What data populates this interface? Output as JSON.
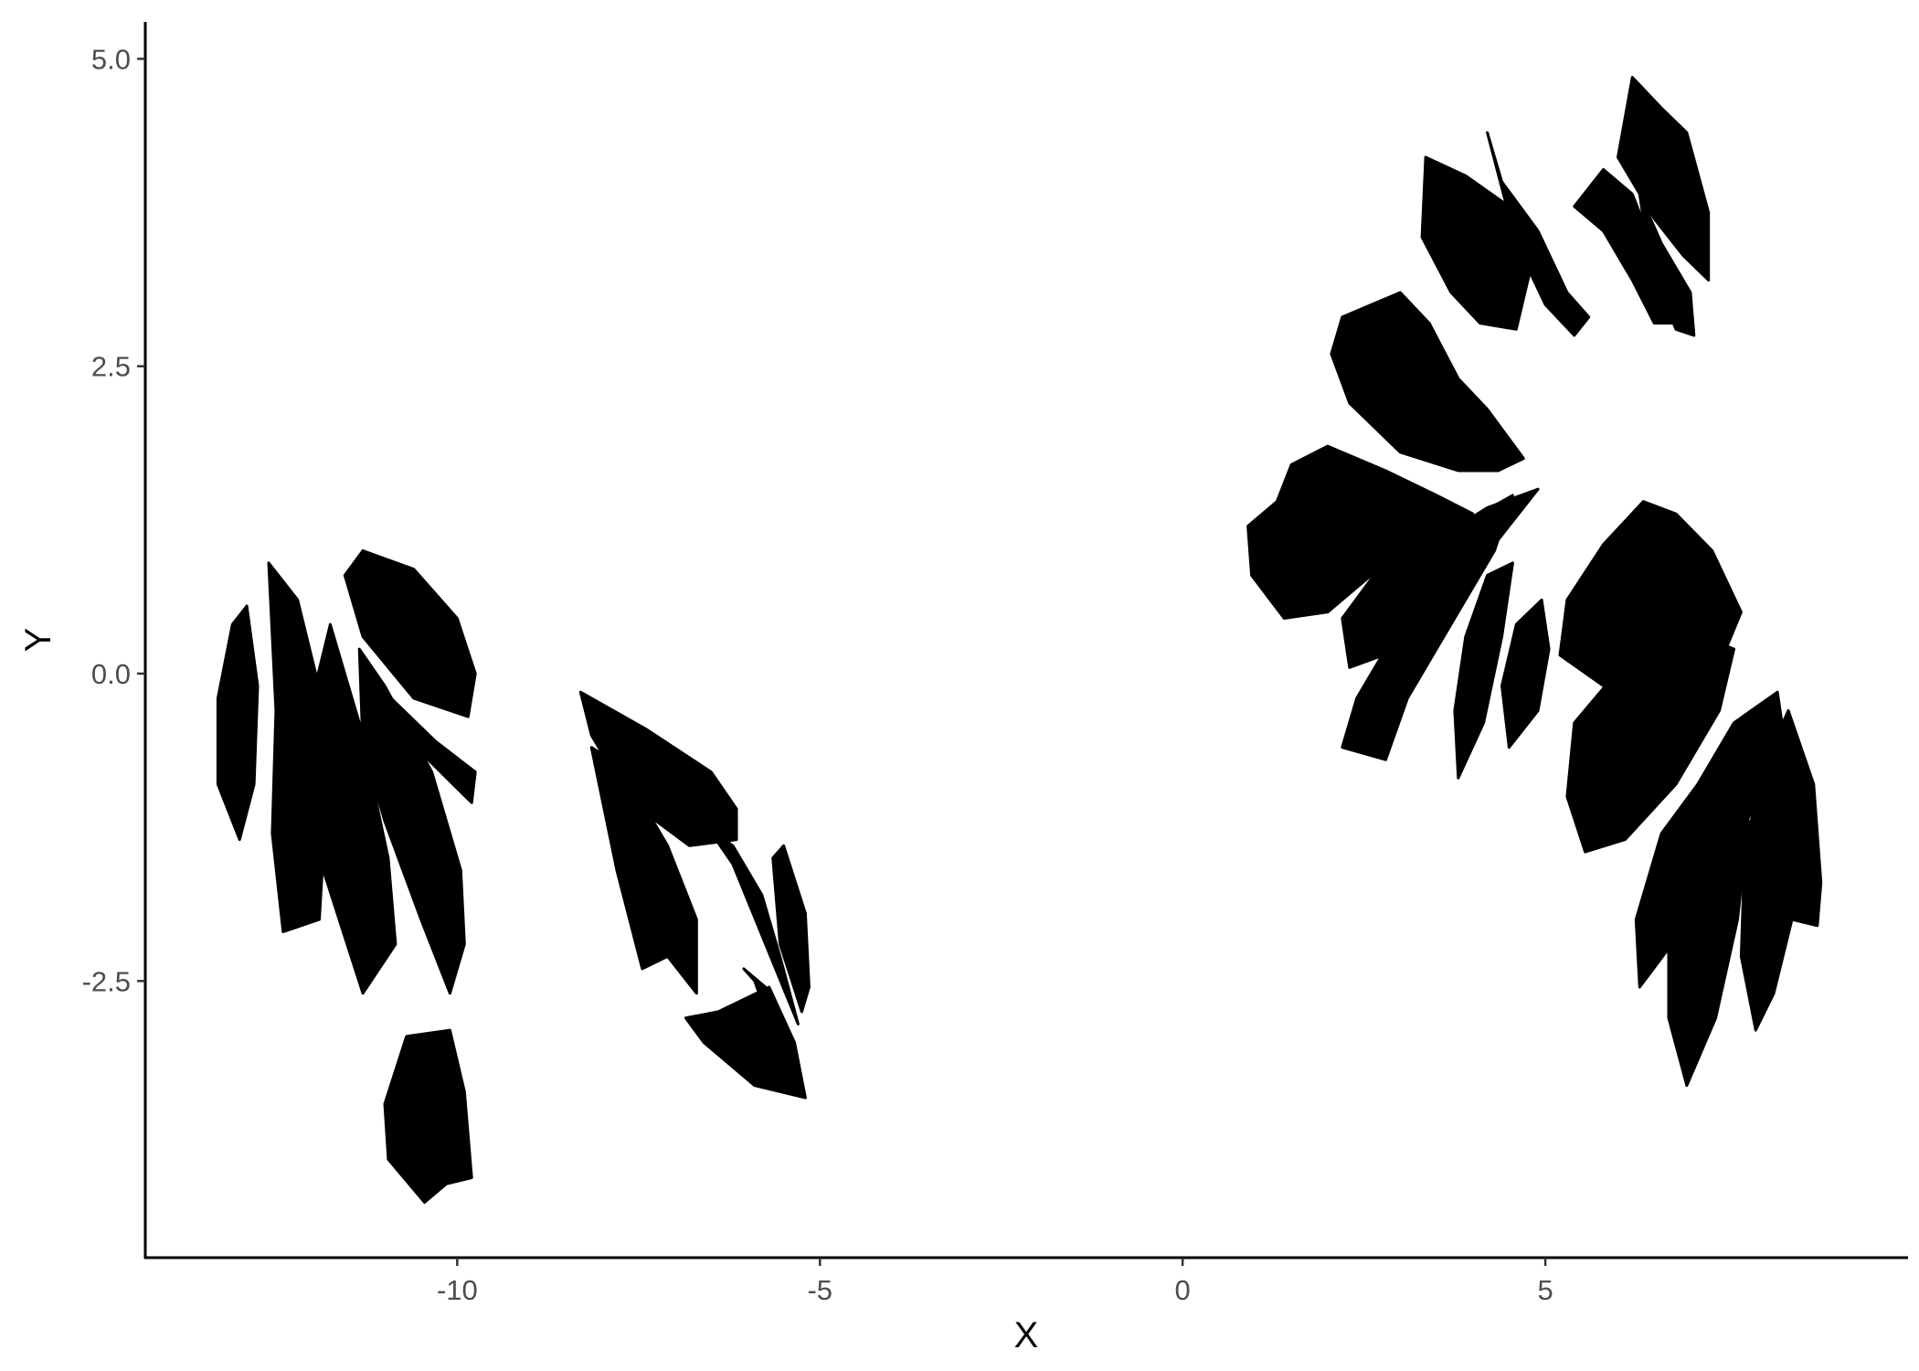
{
  "chart_data": {
    "type": "scatter",
    "title": "",
    "xlabel": "X",
    "ylabel": "Y",
    "xlim": [
      -14.3,
      10
    ],
    "ylim": [
      -4.75,
      5.3
    ],
    "x_ticks": [
      -10,
      -5,
      0,
      5
    ],
    "x_tick_labels": [
      "-10",
      "-5",
      "0",
      "5"
    ],
    "y_ticks": [
      -2.5,
      0,
      2.5,
      5
    ],
    "y_tick_labels": [
      "-2.5",
      "0.0",
      "2.5",
      "5.0"
    ],
    "grid": false,
    "legend": "none",
    "point_color": "#000000",
    "description_free_regions": [
      {
        "name": "leaf-left-narrow",
        "points": [
          [
            -13.0,
            -1.35
          ],
          [
            -13.3,
            -0.9
          ],
          [
            -13.3,
            -0.2
          ],
          [
            -13.1,
            0.4
          ],
          [
            -12.9,
            0.55
          ],
          [
            -12.75,
            -0.1
          ],
          [
            -12.8,
            -0.9
          ]
        ]
      },
      {
        "name": "leaf-left-tall-a",
        "points": [
          [
            -12.4,
            -2.1
          ],
          [
            -12.55,
            -1.3
          ],
          [
            -12.5,
            -0.3
          ],
          [
            -12.6,
            0.9
          ],
          [
            -12.2,
            0.6
          ],
          [
            -11.95,
            0.0
          ],
          [
            -11.8,
            -1.0
          ],
          [
            -11.9,
            -2.0
          ]
        ]
      },
      {
        "name": "leaf-left-tall-b",
        "points": [
          [
            -11.3,
            -2.6
          ],
          [
            -11.9,
            -1.5
          ],
          [
            -12.0,
            -0.2
          ],
          [
            -11.75,
            0.4
          ],
          [
            -11.35,
            -0.4
          ],
          [
            -10.95,
            -1.5
          ],
          [
            -10.85,
            -2.2
          ]
        ]
      },
      {
        "name": "leaf-left-mid",
        "points": [
          [
            -10.1,
            -2.6
          ],
          [
            -10.5,
            -2.0
          ],
          [
            -11.0,
            -1.2
          ],
          [
            -11.3,
            -0.6
          ],
          [
            -11.35,
            0.2
          ],
          [
            -11.0,
            -0.1
          ],
          [
            -10.35,
            -0.8
          ],
          [
            -9.95,
            -1.6
          ],
          [
            -9.9,
            -2.2
          ]
        ]
      },
      {
        "name": "leaf-left-band",
        "points": [
          [
            -9.8,
            -1.05
          ],
          [
            -10.4,
            -0.7
          ],
          [
            -11.0,
            -0.4
          ],
          [
            -11.3,
            0.0
          ],
          [
            -11.0,
            -0.15
          ],
          [
            -10.3,
            -0.55
          ],
          [
            -9.75,
            -0.8
          ]
        ]
      },
      {
        "name": "leaf-left-oval",
        "points": [
          [
            -9.85,
            -0.35
          ],
          [
            -10.6,
            -0.2
          ],
          [
            -11.3,
            0.3
          ],
          [
            -11.55,
            0.8
          ],
          [
            -11.3,
            1.0
          ],
          [
            -10.6,
            0.85
          ],
          [
            -10.0,
            0.45
          ],
          [
            -9.75,
            0.0
          ]
        ]
      },
      {
        "name": "leaf-bottom-small",
        "points": [
          [
            -10.45,
            -4.3
          ],
          [
            -10.95,
            -3.95
          ],
          [
            -11.0,
            -3.5
          ],
          [
            -10.7,
            -2.95
          ],
          [
            -10.1,
            -2.9
          ],
          [
            -9.9,
            -3.4
          ],
          [
            -9.8,
            -4.1
          ],
          [
            -10.15,
            -4.15
          ]
        ]
      },
      {
        "name": "leaf-mid-upper",
        "points": [
          [
            -8.3,
            -0.15
          ],
          [
            -7.4,
            -0.45
          ],
          [
            -6.5,
            -0.8
          ],
          [
            -6.15,
            -1.1
          ],
          [
            -6.15,
            -1.35
          ],
          [
            -6.8,
            -1.4
          ],
          [
            -7.6,
            -1.05
          ],
          [
            -8.15,
            -0.5
          ]
        ]
      },
      {
        "name": "leaf-mid-tall",
        "points": [
          [
            -7.45,
            -2.4
          ],
          [
            -7.8,
            -1.6
          ],
          [
            -8.15,
            -0.6
          ],
          [
            -7.75,
            -0.75
          ],
          [
            -7.1,
            -1.4
          ],
          [
            -6.7,
            -2.0
          ],
          [
            -6.7,
            -2.6
          ],
          [
            -7.1,
            -2.3
          ]
        ]
      },
      {
        "name": "leaf-mid-slim",
        "points": [
          [
            -5.3,
            -2.85
          ],
          [
            -5.75,
            -2.2
          ],
          [
            -6.2,
            -1.55
          ],
          [
            -6.55,
            -1.25
          ],
          [
            -6.2,
            -1.4
          ],
          [
            -5.8,
            -1.8
          ],
          [
            -5.55,
            -2.3
          ]
        ]
      },
      {
        "name": "leaf-mid-right-slim",
        "points": [
          [
            -5.25,
            -2.75
          ],
          [
            -5.55,
            -2.2
          ],
          [
            -5.65,
            -1.5
          ],
          [
            -5.5,
            -1.4
          ],
          [
            -5.2,
            -1.95
          ],
          [
            -5.15,
            -2.55
          ]
        ]
      },
      {
        "name": "leaf-mid-bottom",
        "points": [
          [
            -5.2,
            -3.45
          ],
          [
            -5.9,
            -3.35
          ],
          [
            -6.6,
            -3.0
          ],
          [
            -6.85,
            -2.8
          ],
          [
            -6.4,
            -2.75
          ],
          [
            -5.7,
            -2.55
          ],
          [
            -5.35,
            -3.0
          ]
        ]
      },
      {
        "name": "leaf-mid-bottom-b",
        "points": [
          [
            -5.35,
            -3.4
          ],
          [
            -5.6,
            -3.0
          ],
          [
            -5.9,
            -2.5
          ],
          [
            -6.05,
            -2.4
          ],
          [
            -5.75,
            -2.55
          ],
          [
            -5.45,
            -2.9
          ],
          [
            -5.25,
            -3.3
          ]
        ]
      },
      {
        "name": "leaf-right-heart",
        "points": [
          [
            1.4,
            0.45
          ],
          [
            0.95,
            0.8
          ],
          [
            0.9,
            1.2
          ],
          [
            1.3,
            1.4
          ],
          [
            1.5,
            1.7
          ],
          [
            2.0,
            1.85
          ],
          [
            2.8,
            1.65
          ],
          [
            3.5,
            1.45
          ],
          [
            4.0,
            1.3
          ],
          [
            3.5,
            1.05
          ],
          [
            2.6,
            0.8
          ],
          [
            2.0,
            0.5
          ]
        ]
      },
      {
        "name": "leaf-right-wing",
        "points": [
          [
            3.0,
            1.8
          ],
          [
            2.3,
            2.2
          ],
          [
            2.05,
            2.6
          ],
          [
            2.2,
            2.9
          ],
          [
            2.6,
            3.0
          ],
          [
            3.0,
            3.1
          ],
          [
            3.4,
            2.85
          ],
          [
            3.8,
            2.4
          ],
          [
            4.2,
            2.15
          ],
          [
            4.7,
            1.75
          ],
          [
            4.35,
            1.65
          ],
          [
            3.8,
            1.65
          ]
        ]
      },
      {
        "name": "leaf-right-blade-a",
        "points": [
          [
            2.3,
            0.05
          ],
          [
            2.2,
            0.45
          ],
          [
            2.7,
            0.85
          ],
          [
            3.4,
            1.05
          ],
          [
            4.2,
            1.35
          ],
          [
            4.9,
            1.5
          ],
          [
            4.3,
            1.05
          ],
          [
            3.6,
            0.55
          ],
          [
            3.0,
            0.2
          ]
        ]
      },
      {
        "name": "leaf-right-blade-b",
        "points": [
          [
            2.2,
            -0.6
          ],
          [
            2.4,
            -0.2
          ],
          [
            2.9,
            0.3
          ],
          [
            3.5,
            0.8
          ],
          [
            4.1,
            1.3
          ],
          [
            4.55,
            1.45
          ],
          [
            4.3,
            1.0
          ],
          [
            3.8,
            0.5
          ],
          [
            3.1,
            -0.2
          ],
          [
            2.8,
            -0.7
          ]
        ]
      },
      {
        "name": "leaf-right-blade-c",
        "points": [
          [
            3.8,
            -0.85
          ],
          [
            3.75,
            -0.3
          ],
          [
            3.9,
            0.3
          ],
          [
            4.2,
            0.8
          ],
          [
            4.55,
            0.9
          ],
          [
            4.4,
            0.3
          ],
          [
            4.15,
            -0.4
          ]
        ]
      },
      {
        "name": "leaf-right-blade-d",
        "points": [
          [
            4.5,
            -0.6
          ],
          [
            4.4,
            -0.1
          ],
          [
            4.6,
            0.4
          ],
          [
            4.95,
            0.6
          ],
          [
            5.05,
            0.2
          ],
          [
            4.9,
            -0.3
          ]
        ]
      },
      {
        "name": "leaf-top-fan-a",
        "points": [
          [
            3.3,
            3.55
          ],
          [
            3.35,
            4.2
          ],
          [
            3.9,
            4.05
          ],
          [
            4.5,
            3.8
          ],
          [
            4.8,
            3.3
          ],
          [
            4.6,
            2.8
          ],
          [
            4.1,
            2.85
          ],
          [
            3.7,
            3.1
          ]
        ]
      },
      {
        "name": "leaf-top-fan-b",
        "points": [
          [
            4.2,
            4.4
          ],
          [
            4.4,
            4.0
          ],
          [
            4.9,
            3.6
          ],
          [
            5.3,
            3.1
          ],
          [
            5.6,
            2.9
          ],
          [
            5.4,
            2.75
          ],
          [
            5.0,
            3.0
          ],
          [
            4.6,
            3.5
          ]
        ]
      },
      {
        "name": "leaf-top-fan-c",
        "points": [
          [
            5.4,
            3.8
          ],
          [
            5.8,
            3.6
          ],
          [
            6.2,
            3.2
          ],
          [
            6.5,
            2.85
          ],
          [
            6.9,
            2.85
          ],
          [
            6.6,
            3.3
          ],
          [
            6.2,
            3.9
          ],
          [
            5.8,
            4.1
          ]
        ]
      },
      {
        "name": "leaf-top-tall",
        "points": [
          [
            6.0,
            4.2
          ],
          [
            6.2,
            4.85
          ],
          [
            6.6,
            4.6
          ],
          [
            6.95,
            4.4
          ],
          [
            7.25,
            3.75
          ],
          [
            7.25,
            3.2
          ],
          [
            6.9,
            3.4
          ],
          [
            6.5,
            3.7
          ]
        ]
      },
      {
        "name": "leaf-top-sliver",
        "points": [
          [
            6.3,
            3.9
          ],
          [
            6.6,
            3.5
          ],
          [
            7.0,
            3.1
          ],
          [
            7.05,
            2.75
          ],
          [
            6.8,
            2.8
          ],
          [
            6.45,
            3.3
          ]
        ]
      },
      {
        "name": "leaf-lower-cluster",
        "points": [
          [
            5.2,
            0.15
          ],
          [
            5.3,
            0.6
          ],
          [
            5.8,
            1.05
          ],
          [
            6.35,
            1.4
          ],
          [
            6.8,
            1.3
          ],
          [
            7.3,
            1.0
          ],
          [
            7.7,
            0.5
          ],
          [
            7.35,
            0.0
          ],
          [
            6.6,
            -0.15
          ],
          [
            5.8,
            -0.1
          ]
        ]
      },
      {
        "name": "leaf-lower-long",
        "points": [
          [
            5.55,
            -1.45
          ],
          [
            5.3,
            -1.0
          ],
          [
            5.4,
            -0.4
          ],
          [
            5.9,
            -0.05
          ],
          [
            6.6,
            0.15
          ],
          [
            7.2,
            0.3
          ],
          [
            7.6,
            0.2
          ],
          [
            7.4,
            -0.3
          ],
          [
            6.8,
            -0.9
          ],
          [
            6.1,
            -1.35
          ]
        ]
      },
      {
        "name": "leaf-lower-fan",
        "points": [
          [
            6.3,
            -2.55
          ],
          [
            6.25,
            -2.0
          ],
          [
            6.6,
            -1.3
          ],
          [
            7.1,
            -0.9
          ],
          [
            7.6,
            -0.4
          ],
          [
            8.2,
            -0.15
          ],
          [
            8.3,
            -0.55
          ],
          [
            7.7,
            -1.3
          ],
          [
            7.0,
            -2.0
          ]
        ]
      },
      {
        "name": "leaf-lower-tip",
        "points": [
          [
            6.95,
            -3.35
          ],
          [
            6.7,
            -2.8
          ],
          [
            6.7,
            -2.2
          ],
          [
            7.05,
            -1.5
          ],
          [
            7.55,
            -1.0
          ],
          [
            7.8,
            -1.2
          ],
          [
            7.65,
            -2.0
          ],
          [
            7.35,
            -2.8
          ]
        ]
      },
      {
        "name": "leaf-lower-right",
        "points": [
          [
            7.9,
            -2.9
          ],
          [
            7.7,
            -2.3
          ],
          [
            7.75,
            -1.4
          ],
          [
            8.05,
            -0.7
          ],
          [
            8.35,
            -0.3
          ],
          [
            8.7,
            -0.9
          ],
          [
            8.8,
            -1.7
          ],
          [
            8.75,
            -2.05
          ],
          [
            8.4,
            -2.0
          ],
          [
            8.15,
            -2.6
          ]
        ]
      }
    ]
  }
}
